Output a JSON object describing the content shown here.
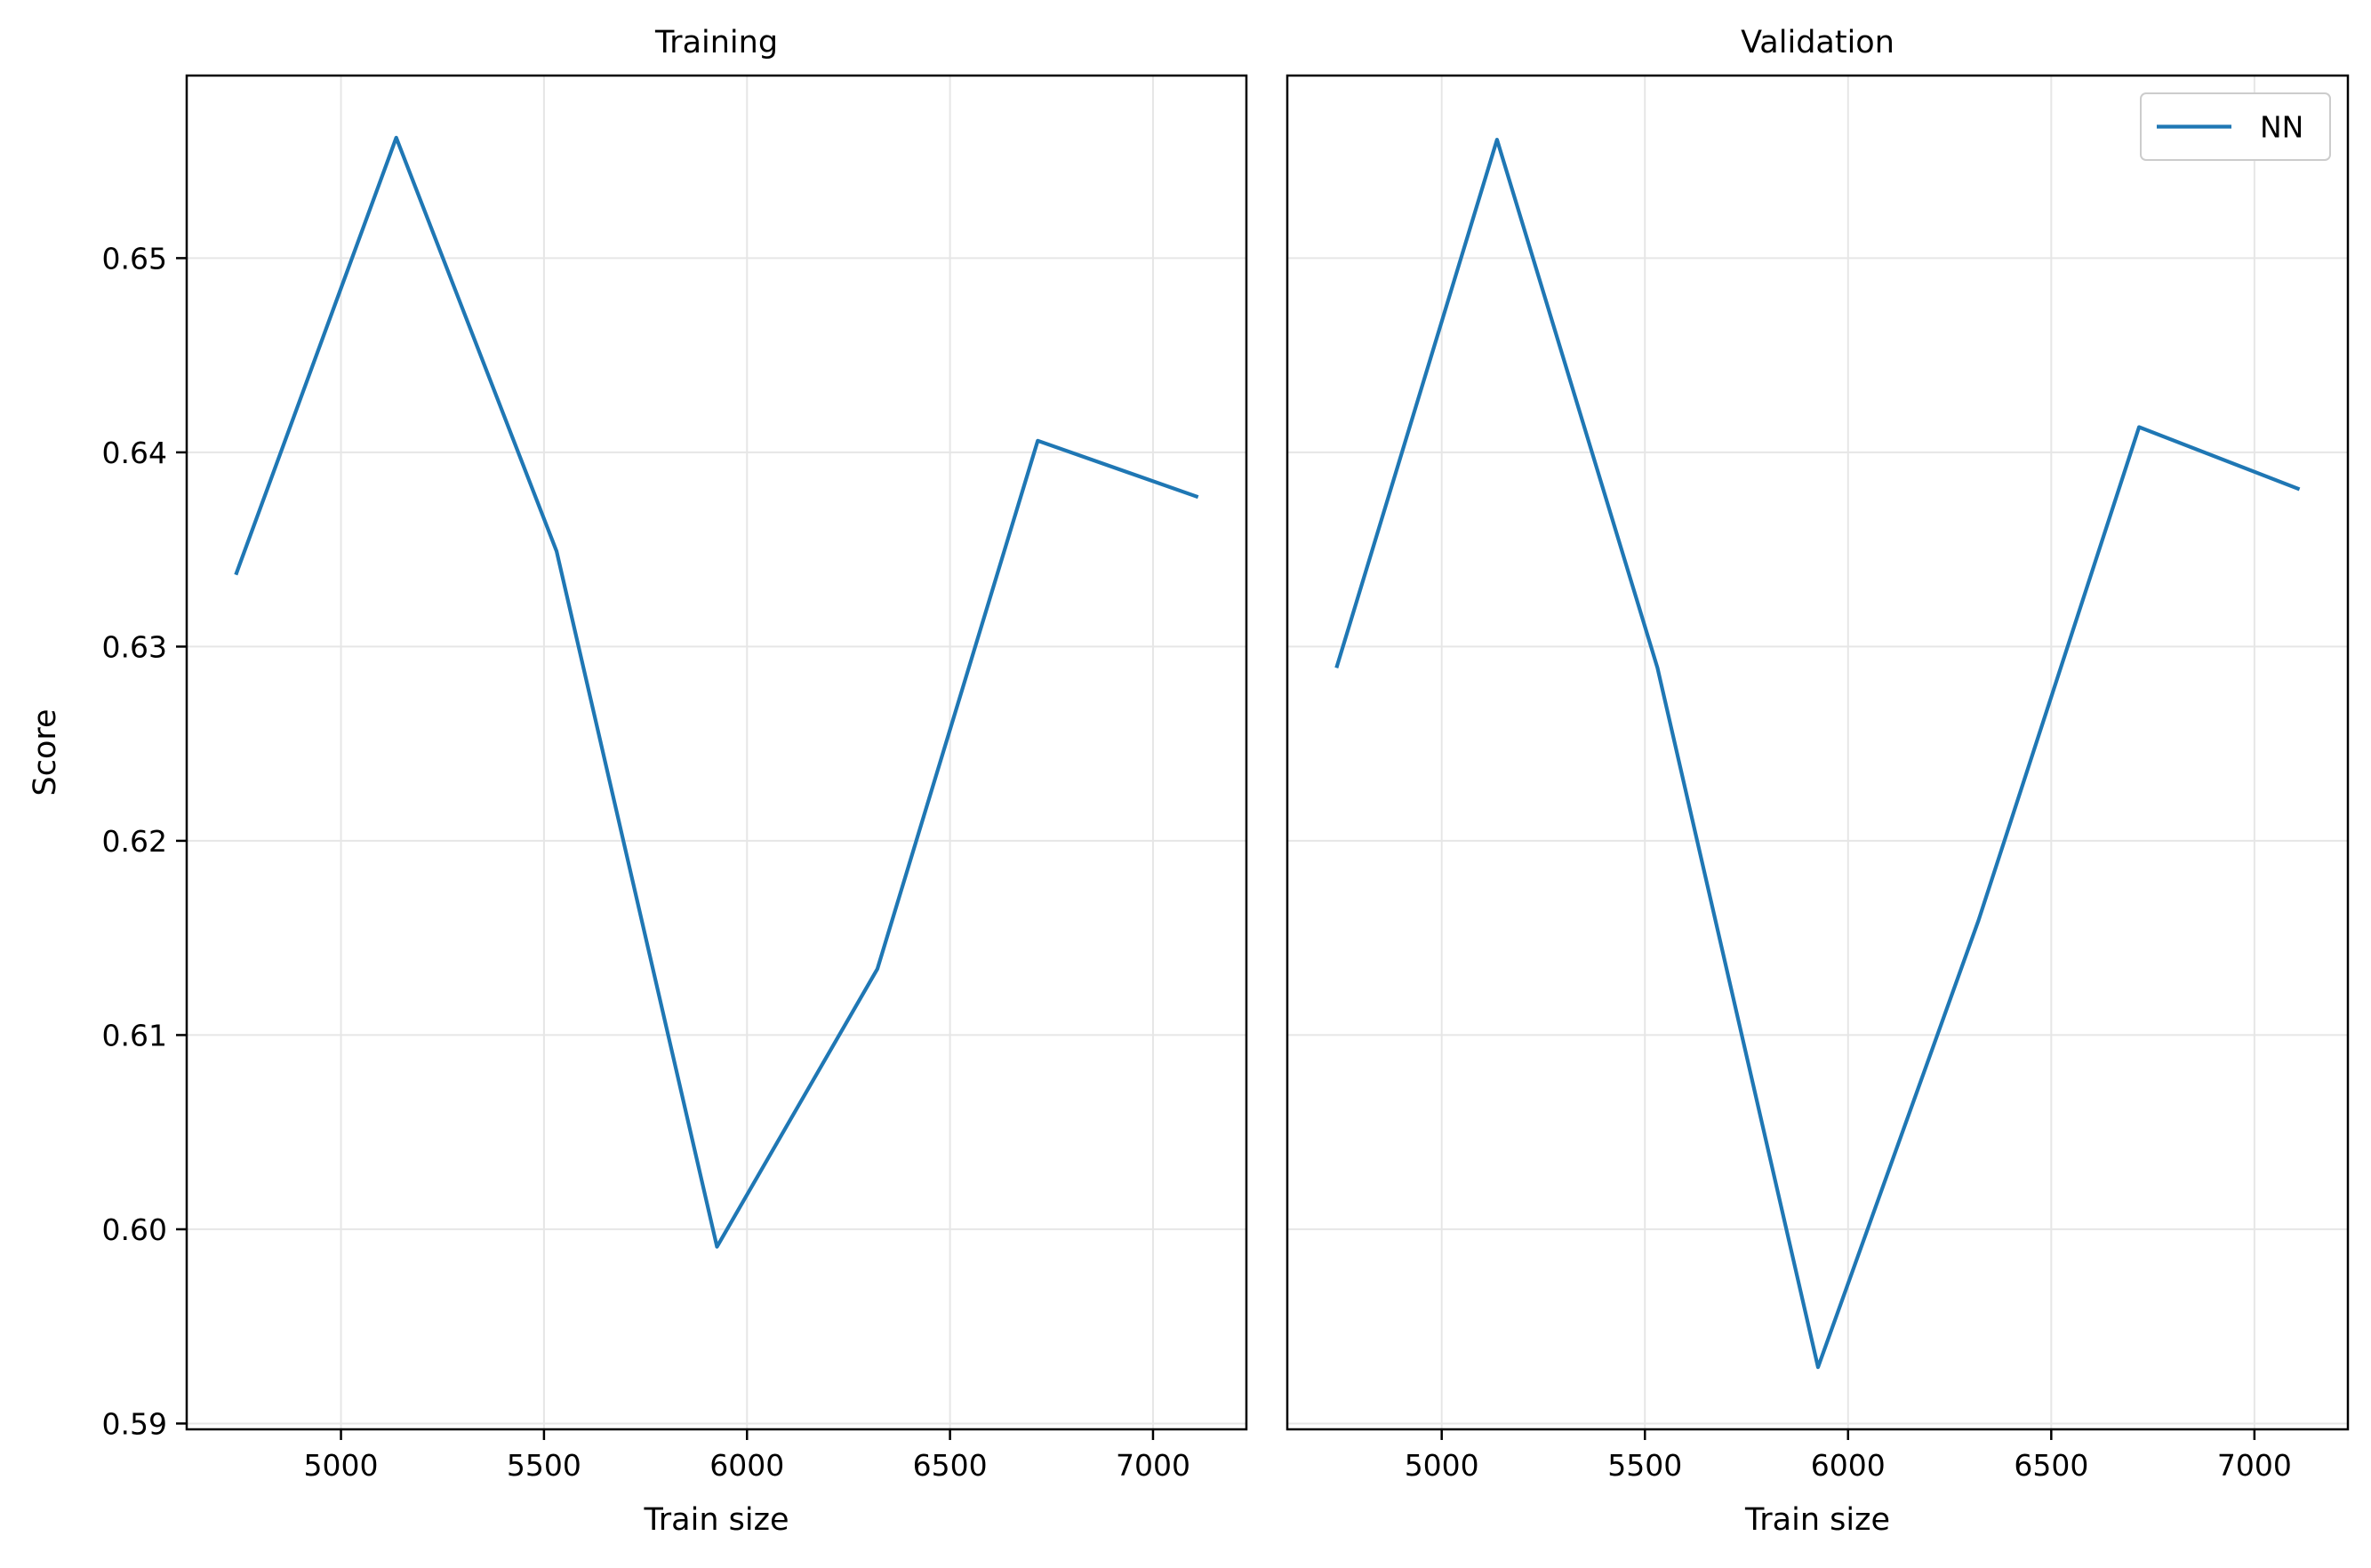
{
  "chart_data": [
    {
      "type": "line",
      "title": "Training",
      "xlabel": "Train size",
      "ylabel": "Score",
      "xlim": [
        4620,
        7230
      ],
      "ylim": [
        0.5897,
        0.6594
      ],
      "xticks": [
        5000,
        5500,
        6000,
        6500,
        7000
      ],
      "yticks": [
        0.59,
        0.6,
        0.61,
        0.62,
        0.63,
        0.64,
        0.65
      ],
      "xtick_labels": [
        "5000",
        "5500",
        "6000",
        "6500",
        "7000"
      ],
      "ytick_labels": [
        "0.59",
        "0.60",
        "0.61",
        "0.62",
        "0.63",
        "0.64",
        "0.65"
      ],
      "grid": true,
      "series": [
        {
          "color": "#1f77b4",
          "x": [
            4741,
            5136,
            5531,
            5926,
            6321,
            6716,
            7111
          ],
          "y": [
            0.6337,
            0.6562,
            0.6349,
            0.5991,
            0.6134,
            0.6406,
            0.6377
          ]
        }
      ]
    },
    {
      "type": "line",
      "title": "Validation",
      "xlabel": "Train size",
      "ylabel": "",
      "xlim": [
        4620,
        7230
      ],
      "ylim": [
        0.5897,
        0.6594
      ],
      "xticks": [
        5000,
        5500,
        6000,
        6500,
        7000
      ],
      "yticks": [],
      "xtick_labels": [
        "5000",
        "5500",
        "6000",
        "6500",
        "7000"
      ],
      "ytick_labels": [],
      "grid": true,
      "legend": {
        "position": "top-right",
        "entries": [
          "NN"
        ]
      },
      "series": [
        {
          "name": "NN",
          "color": "#1f77b4",
          "x": [
            4741,
            5136,
            5531,
            5926,
            6321,
            6716,
            7111
          ],
          "y": [
            0.6289,
            0.6561,
            0.6289,
            0.5929,
            0.6159,
            0.6413,
            0.6381
          ]
        }
      ]
    }
  ]
}
